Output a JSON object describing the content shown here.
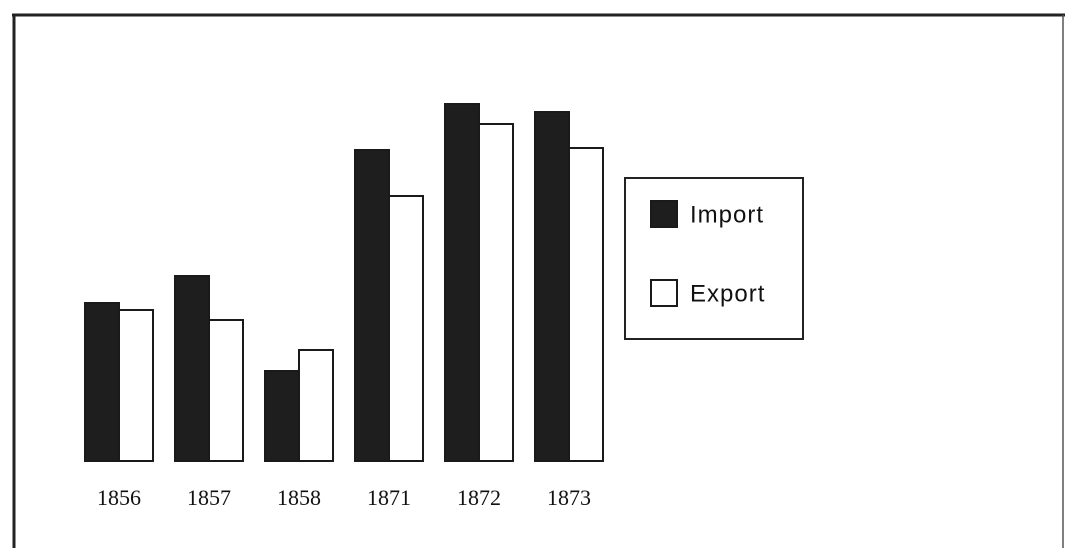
{
  "chart_data": {
    "type": "bar",
    "categories": [
      "1856",
      "1857",
      "1858",
      "1871",
      "1872",
      "1873"
    ],
    "series": [
      {
        "name": "Import",
        "color": "#1e1e1e",
        "values": [
          158,
          185,
          90,
          311,
          357,
          349
        ]
      },
      {
        "name": "Export",
        "color": "#ffffff",
        "values": [
          151,
          141,
          111,
          265,
          337,
          313
        ]
      }
    ],
    "ylim": [
      0,
      400
    ],
    "legend": "right"
  }
}
